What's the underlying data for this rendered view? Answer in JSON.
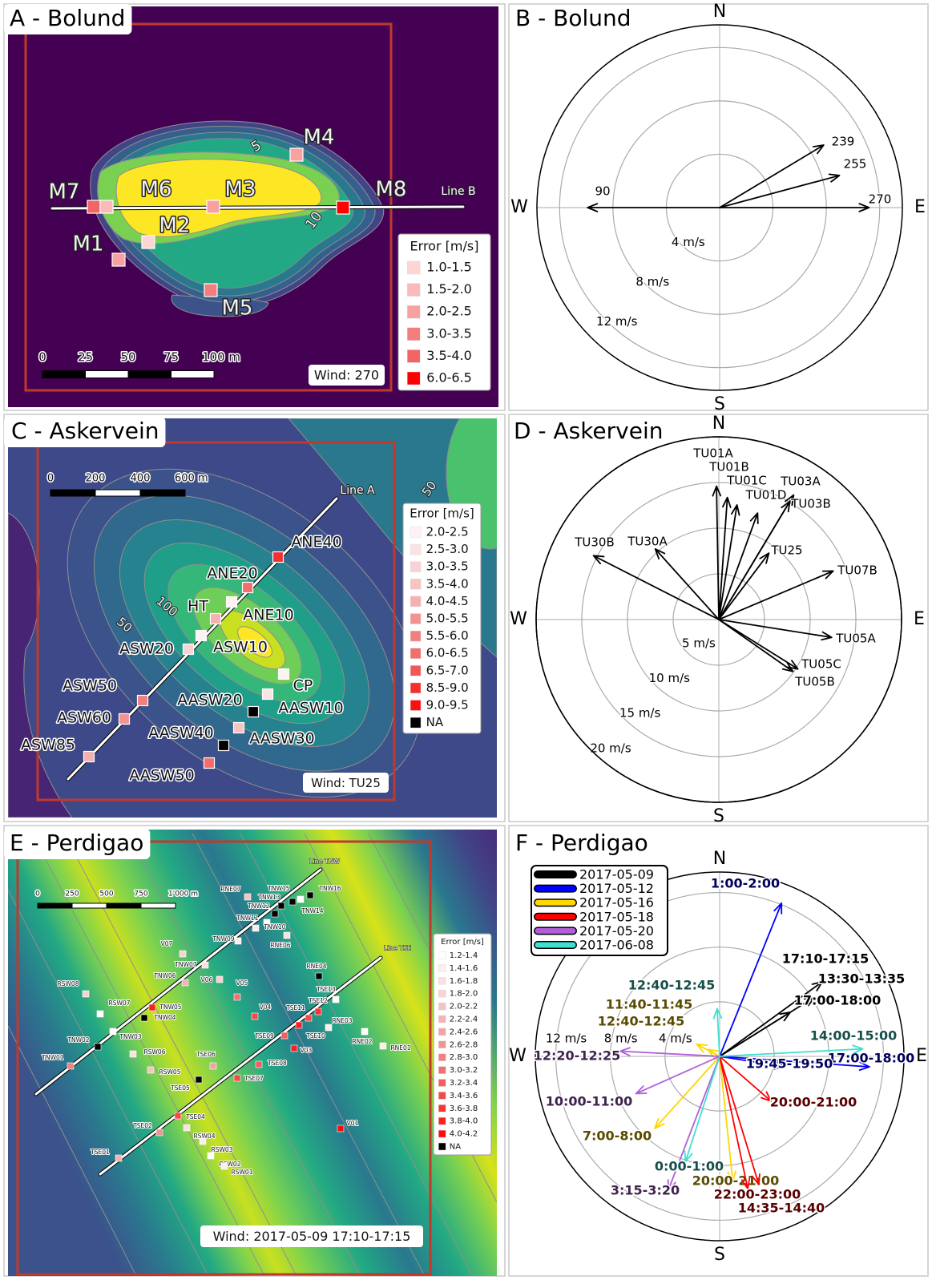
{
  "maps": [
    {
      "title": "A - Bolund",
      "scale_labels": [
        "0",
        "25",
        "50",
        "75",
        "100 m"
      ],
      "line_labels": [
        "Line B"
      ],
      "contour_labels": [
        "5",
        "10"
      ],
      "legend_title": "Error [m/s]",
      "legend": [
        {
          "label": "1.0-1.5",
          "color": "#fdd5d5"
        },
        {
          "label": "1.5-2.0",
          "color": "#fbbaba"
        },
        {
          "label": "2.0-2.5",
          "color": "#f9a0a0"
        },
        {
          "label": "3.0-3.5",
          "color": "#f57c7c"
        },
        {
          "label": "3.5-4.0",
          "color": "#f36464"
        },
        {
          "label": "6.0-6.5",
          "color": "#ff0000"
        }
      ],
      "stations": [
        {
          "name": "M4",
          "color": "#f9a0a0"
        },
        {
          "name": "M7",
          "color": "#f36464"
        },
        {
          "name": "M6",
          "color": "#fbbaba"
        },
        {
          "name": "M3",
          "color": "#f9a0a0"
        },
        {
          "name": "M8",
          "color": "#ff0000"
        },
        {
          "name": "M2",
          "color": "#fdd5d5"
        },
        {
          "name": "M1",
          "color": "#f9a0a0"
        },
        {
          "name": "M5",
          "color": "#f57c7c"
        }
      ],
      "wind": "Wind: 270"
    },
    {
      "title": "C - Askervein",
      "scale_labels": [
        "0",
        "200",
        "400",
        "600 m"
      ],
      "line_labels": [
        "Line A"
      ],
      "contour_labels": [
        "50",
        "100",
        "50"
      ],
      "legend_title": "Error [m/s]",
      "legend": [
        {
          "label": "2.0-2.5",
          "color": "#fdf3f3"
        },
        {
          "label": "2.5-3.0",
          "color": "#fbe3e3"
        },
        {
          "label": "3.0-3.5",
          "color": "#f9d3d3"
        },
        {
          "label": "3.5-4.0",
          "color": "#f7c3c3"
        },
        {
          "label": "4.0-4.5",
          "color": "#f5b0b0"
        },
        {
          "label": "5.0-5.5",
          "color": "#f39292"
        },
        {
          "label": "5.5-6.0",
          "color": "#f27f7f"
        },
        {
          "label": "6.0-6.5",
          "color": "#f26d6d"
        },
        {
          "label": "6.5-7.0",
          "color": "#f25757"
        },
        {
          "label": "8.5-9.0",
          "color": "#f52f2f"
        },
        {
          "label": "9.0-9.5",
          "color": "#fb1010"
        },
        {
          "label": "NA",
          "color": "#000000"
        }
      ],
      "stations": [
        {
          "name": "ANE40",
          "color": "#f52f2f"
        },
        {
          "name": "ANE20",
          "color": "#f26d6d"
        },
        {
          "name": "HT",
          "color": "#f5b0b0"
        },
        {
          "name": "ANE10",
          "color": "#fdf3f3"
        },
        {
          "name": "ASW10",
          "color": "#fdf3f3"
        },
        {
          "name": "ASW20",
          "color": "#f9d3d3"
        },
        {
          "name": "CP",
          "color": "#fdf3f3"
        },
        {
          "name": "AASW20",
          "color": "#000000"
        },
        {
          "name": "AASW10",
          "color": "#fbe3e3"
        },
        {
          "name": "ASW50",
          "color": "#f27f7f"
        },
        {
          "name": "ASW60",
          "color": "#f39292"
        },
        {
          "name": "AASW40",
          "color": "#000000"
        },
        {
          "name": "AASW30",
          "color": "#f7c3c3"
        },
        {
          "name": "ASW85",
          "color": "#f5b0b0"
        },
        {
          "name": "AASW50",
          "color": "#f26d6d"
        }
      ],
      "wind": "Wind: TU25"
    },
    {
      "title": "E - Perdigao",
      "scale_labels": [
        "0",
        "250",
        "500",
        "750",
        "1'000 m"
      ],
      "line_labels": [
        "Line TNW",
        "Line TSE"
      ],
      "contour_labels": [],
      "legend_title": "Error [m/s]",
      "legend": [
        {
          "label": "1.2-1.4",
          "color": "#ffffff"
        },
        {
          "label": "1.4-1.6",
          "color": "#fdeeee"
        },
        {
          "label": "1.6-1.8",
          "color": "#fbe0e0"
        },
        {
          "label": "1.8-2.0",
          "color": "#f9d2d2"
        },
        {
          "label": "2.0-2.2",
          "color": "#f7c2c2"
        },
        {
          "label": "2.2-2.4",
          "color": "#f5b2b2"
        },
        {
          "label": "2.4-2.6",
          "color": "#f3a2a2"
        },
        {
          "label": "2.6-2.8",
          "color": "#f29292"
        },
        {
          "label": "2.8-3.0",
          "color": "#f28282"
        },
        {
          "label": "3.0-3.2",
          "color": "#f27070"
        },
        {
          "label": "3.2-3.4",
          "color": "#f25d5d"
        },
        {
          "label": "3.4-3.6",
          "color": "#f44a4a"
        },
        {
          "label": "3.6-3.8",
          "color": "#f73535"
        },
        {
          "label": "3.8-4.0",
          "color": "#fa2020"
        },
        {
          "label": "4.0-4.2",
          "color": "#fe0a0a"
        },
        {
          "label": "NA",
          "color": "#000000"
        }
      ],
      "stations": [
        {
          "name": "RNE07",
          "color": "#f7c2c2"
        },
        {
          "name": "TNW13",
          "color": "#000000"
        },
        {
          "name": "TNW15",
          "color": "#000000"
        },
        {
          "name": "TNW16",
          "color": "#000000"
        },
        {
          "name": "TNW12",
          "color": "#000000"
        },
        {
          "name": "TNW14",
          "color": "#ffffff"
        },
        {
          "name": "TNW11",
          "color": "#ffffff"
        },
        {
          "name": "TNW10",
          "color": "#fdeeee"
        },
        {
          "name": "RNE06",
          "color": "#fbe0e0"
        },
        {
          "name": "TNW09",
          "color": "#fdeeee"
        },
        {
          "name": "V07",
          "color": "#f9d2d2"
        },
        {
          "name": "TNW07",
          "color": "#fbe0e0"
        },
        {
          "name": "TNW06",
          "color": "#f5b2b2"
        },
        {
          "name": "V06",
          "color": "#f9d2d2"
        },
        {
          "name": "V05",
          "color": "#f27070"
        },
        {
          "name": "TNW05",
          "color": "#fa2020"
        },
        {
          "name": "TNW04",
          "color": "#000000"
        },
        {
          "name": "RSW08",
          "color": "#f9d2d2"
        },
        {
          "name": "RSW07",
          "color": "#ffffff"
        },
        {
          "name": "TNW03",
          "color": "#ffffff"
        },
        {
          "name": "TNW02",
          "color": "#000000"
        },
        {
          "name": "TNW01",
          "color": "#f28282"
        },
        {
          "name": "RSW06",
          "color": "#fbe0e0"
        },
        {
          "name": "RSW05",
          "color": "#f7c2c2"
        },
        {
          "name": "V04",
          "color": "#f44a4a"
        },
        {
          "name": "TSE11",
          "color": "#f44a4a"
        },
        {
          "name": "TSE13",
          "color": "#ffffff"
        },
        {
          "name": "TSE12",
          "color": "#f73535"
        },
        {
          "name": "RNE04",
          "color": "#000000"
        },
        {
          "name": "RNE03",
          "color": "#fdeeee"
        },
        {
          "name": "TSE09",
          "color": "#f25d5d"
        },
        {
          "name": "TSE10",
          "color": "#fa2020"
        },
        {
          "name": "RNE02",
          "color": "#ffffff"
        },
        {
          "name": "RNE01",
          "color": "#fdeeee"
        },
        {
          "name": "V03",
          "color": "#fa2020"
        },
        {
          "name": "TSE08",
          "color": "#f25d5d"
        },
        {
          "name": "TSE07",
          "color": "#f44a4a"
        },
        {
          "name": "TSE06",
          "color": "#f3a2a2"
        },
        {
          "name": "TSE05",
          "color": "#000000"
        },
        {
          "name": "TSE04",
          "color": "#f44a4a"
        },
        {
          "name": "TSE02",
          "color": "#f29292"
        },
        {
          "name": "RSW04",
          "color": "#fbe0e0"
        },
        {
          "name": "RSW03",
          "color": "#fdeeee"
        },
        {
          "name": "RSW02",
          "color": "#ffffff"
        },
        {
          "name": "RSW01",
          "color": "#fdeeee"
        },
        {
          "name": "TSE01",
          "color": "#f5b2b2"
        },
        {
          "name": "V01",
          "color": "#fe0a0a"
        }
      ],
      "wind": "Wind: 2017-05-09 17:10-17:15"
    }
  ],
  "chart_data": [
    {
      "type": "wind_rose",
      "title": "B - Bolund",
      "directions": [
        "N",
        "E",
        "S",
        "W"
      ],
      "rlim": [
        0,
        13.7
      ],
      "rticks": [
        {
          "value": 4,
          "label": "4 m/s"
        },
        {
          "value": 8,
          "label": "8 m/s"
        },
        {
          "value": 12,
          "label": "12 m/s"
        }
      ],
      "series": [
        {
          "color": "#000000",
          "direction": [
            239,
            255,
            270,
            90
          ],
          "values": [
            9.1,
            9.3,
            11.2,
            9.9
          ]
        }
      ]
    },
    {
      "type": "wind_rose",
      "title": "D - Askervein",
      "directions": [
        "N",
        "E",
        "S",
        "W"
      ],
      "rlim": [
        0,
        20
      ],
      "rticks": [
        {
          "value": 5,
          "label": "5 m/s"
        },
        {
          "value": 10,
          "label": "10 m/s"
        },
        {
          "value": 15,
          "label": "15 m/s"
        },
        {
          "value": 20,
          "label": "20 m/s"
        }
      ],
      "series": [
        {
          "color": "#000000",
          "categories": [
            "TU01A",
            "TU01B",
            "TU01C",
            "TU01D",
            "TU03A",
            "TU03B",
            "TU25",
            "TU07B",
            "TU05A",
            "TU05C",
            "TU05B",
            "TU30A",
            "TU30B"
          ],
          "direction": [
            179,
            184,
            189,
            200,
            211,
            211,
            217,
            247,
            279,
            302,
            305,
            138,
            117
          ],
          "values": [
            14.6,
            13.4,
            12.7,
            12.4,
            15.9,
            15.1,
            9.1,
            13.6,
            12.5,
            10.2,
            9.9,
            10.4,
            15.4
          ]
        }
      ]
    },
    {
      "type": "wind_rose",
      "title": "F - Perdigao",
      "directions": [
        "N",
        "E",
        "S",
        "W"
      ],
      "rlim": [
        0,
        13.5
      ],
      "rticks": [
        {
          "value": 4,
          "label": "4 m/s"
        },
        {
          "value": 8,
          "label": "8 m/s"
        },
        {
          "value": 12,
          "label": "12 m/s"
        }
      ],
      "series": [
        {
          "name": "2017-05-09",
          "color": "#000000",
          "categories": [
            "17:10-17:15",
            "13:30-13:35",
            "17:00-18:00"
          ],
          "direction": [
            234,
            238,
            238
          ],
          "values": [
            9.3,
            8.2,
            6.1
          ]
        },
        {
          "name": "2017-05-12",
          "color": "#0000ff",
          "categories": [
            "1:00-2:00",
            "17:00-18:00",
            "19:45-19:50"
          ],
          "direction": [
            202,
            274,
            279
          ],
          "values": [
            12.1,
            11.0,
            4.8
          ]
        },
        {
          "name": "2017-05-16",
          "color": "#ffd700",
          "categories": [
            "11:40-11:45",
            "12:40-12:45",
            "7:00-8:00",
            "20:00-21:00"
          ],
          "direction": [
            118,
            120,
            42,
            354
          ],
          "values": [
            1.9,
            1.0,
            7.1,
            9.2
          ]
        },
        {
          "name": "2017-05-18",
          "color": "#ff0000",
          "categories": [
            "20:00-21:00",
            "22:00-23:00",
            "14:35-14:40"
          ],
          "direction": [
            311,
            348,
            343
          ],
          "values": [
            5.0,
            9.9,
            9.8
          ]
        },
        {
          "name": "2017-05-20",
          "color": "#b05fd8",
          "categories": [
            "12:20-12:25",
            "10:00-11:00",
            "3:15-3:20"
          ],
          "direction": [
            93,
            66,
            21
          ],
          "values": [
            7.3,
            6.7,
            10.5
          ]
        },
        {
          "name": "2017-06-08",
          "color": "#40e0d0",
          "categories": [
            "12:40-12:45",
            "14:00-15:00",
            "0:00-1:00"
          ],
          "direction": [
            177,
            267,
            18
          ],
          "values": [
            3.5,
            10.5,
            8.1
          ]
        }
      ]
    }
  ]
}
